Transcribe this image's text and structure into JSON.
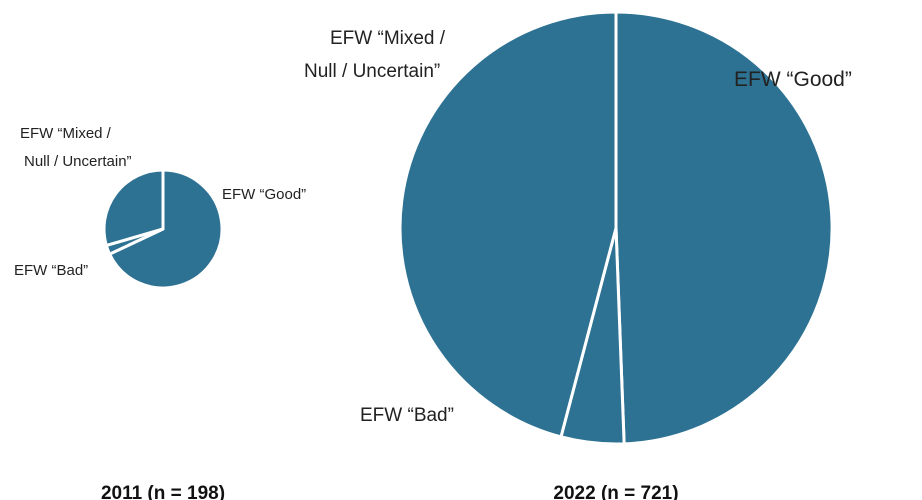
{
  "chart_data": [
    {
      "type": "pie",
      "categories": [
        "EFW “Good”",
        "EFW “Bad”",
        "EFW “Mixed / Null / Uncertain”"
      ],
      "values": [
        68,
        2.5,
        29.5
      ],
      "caption": "2011 (n = 198)",
      "labels": {
        "good": [
          "EFW “Good”"
        ],
        "bad": [
          "EFW “Bad”"
        ],
        "mixed": [
          "EFW “Mixed /",
          "Null / Uncertain”"
        ]
      },
      "colors": {
        "slice": "#2e7293",
        "border": "#ffffff"
      }
    },
    {
      "type": "pie",
      "categories": [
        "EFW “Good”",
        "EFW “Bad”",
        "EFW “Mixed / Null / Uncertain”"
      ],
      "values": [
        49.4,
        4.7,
        45.9
      ],
      "caption": "2022 (n = 721)",
      "labels": {
        "good": [
          "EFW “Good”"
        ],
        "bad": [
          "EFW “Bad”"
        ],
        "mixed": [
          "EFW “Mixed /",
          "Null / Uncertain”"
        ]
      },
      "colors": {
        "slice": "#2e7293",
        "border": "#ffffff"
      }
    }
  ]
}
